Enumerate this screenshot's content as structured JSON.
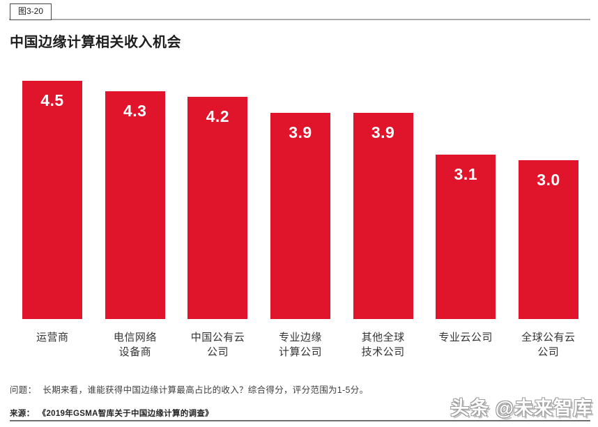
{
  "figure_tag": "图3-20",
  "title": "中国边缘计算相关收入机会",
  "chart_data": {
    "type": "bar",
    "title": "中国边缘计算相关收入机会",
    "categories": [
      "运营商",
      "电信网络设备商",
      "中国公有云公司",
      "专业边缘计算公司",
      "其他全球技术公司",
      "专业云公司",
      "全球公有云公司"
    ],
    "category_lines": [
      [
        "运营商"
      ],
      [
        "电信网络",
        "设备商"
      ],
      [
        "中国公有云",
        "公司"
      ],
      [
        "专业边缘",
        "计算公司"
      ],
      [
        "其他全球",
        "技术公司"
      ],
      [
        "专业云公司"
      ],
      [
        "全球公有云",
        "公司"
      ]
    ],
    "values": [
      4.5,
      4.3,
      4.2,
      3.9,
      3.9,
      3.1,
      3.0
    ],
    "value_labels": [
      "4.5",
      "4.3",
      "4.2",
      "3.9",
      "3.9",
      "3.1",
      "3.0"
    ],
    "ylim": [
      0,
      4.5
    ],
    "xlabel": "",
    "ylabel": "",
    "grid": false,
    "legend_position": "none",
    "bar_color": "#E0152B",
    "value_label_color": "#FFFFFF"
  },
  "footer": {
    "question_label": "问题：",
    "question_text": "长期来看，谁能获得中国边缘计算最高占比的收入？综合得分，评分范围为1-5分。",
    "source_label": "来源：",
    "source_text": "《2019年GSMA智库关于中国边缘计算的调查》"
  },
  "watermark": "头条 @未来智库"
}
